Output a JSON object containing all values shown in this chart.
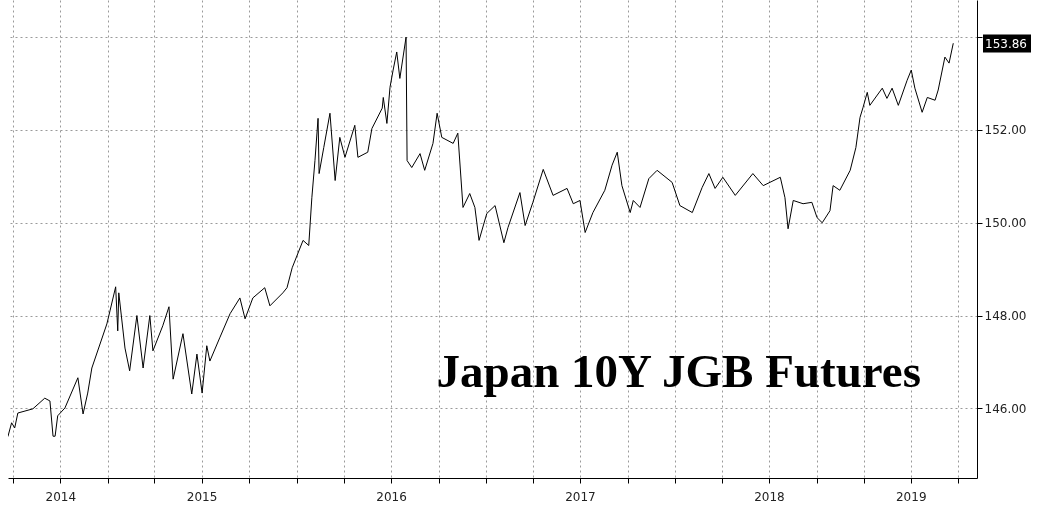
{
  "chart_data": {
    "type": "line",
    "title": "Japan 10Y JGB Futures",
    "x": [
      "2014-06-22",
      "2014-06-29",
      "2014-07-05",
      "2014-07-11",
      "2014-08-09",
      "2014-09-01",
      "2014-09-11",
      "2014-09-17",
      "2014-09-21",
      "2014-09-26",
      "2014-10-10",
      "2014-11-04",
      "2014-11-14",
      "2014-11-23",
      "2014-12-01",
      "2014-12-30",
      "2015-01-05",
      "2015-01-16",
      "2015-01-20",
      "2015-01-22",
      "2015-02-03",
      "2015-02-12",
      "2015-02-26",
      "2015-03-10",
      "2015-03-23",
      "2015-03-29",
      "2015-04-17",
      "2015-04-29",
      "2015-05-07",
      "2015-05-26",
      "2015-06-12",
      "2015-06-22",
      "2015-07-02",
      "2015-07-11",
      "2015-07-17",
      "2015-08-05",
      "2015-08-25",
      "2015-09-13",
      "2015-09-23",
      "2015-10-08",
      "2015-10-31",
      "2015-11-10",
      "2015-12-05",
      "2015-12-13",
      "2015-12-23",
      "2016-01-13",
      "2016-01-24",
      "2016-01-30",
      "2016-02-05",
      "2016-02-11",
      "2016-02-13",
      "2016-02-22",
      "2016-03-05",
      "2016-03-15",
      "2016-03-24",
      "2016-04-03",
      "2016-04-22",
      "2016-04-28",
      "2016-05-17",
      "2016-05-25",
      "2016-06-14",
      "2016-06-16",
      "2016-06-23",
      "2016-06-29",
      "2016-07-05",
      "2016-07-12",
      "2016-07-18",
      "2016-07-30",
      "2016-08-01",
      "2016-08-10",
      "2016-08-26",
      "2016-09-04",
      "2016-09-20",
      "2016-09-28",
      "2016-10-07",
      "2016-10-29",
      "2016-11-07",
      "2016-11-17",
      "2016-11-30",
      "2016-12-10",
      "2016-12-18",
      "2017-01-02",
      "2017-01-18",
      "2017-02-04",
      "2017-02-12",
      "2017-03-07",
      "2017-03-17",
      "2017-04-01",
      "2017-04-21",
      "2017-05-10",
      "2017-06-06",
      "2017-06-18",
      "2017-07-01",
      "2017-07-11",
      "2017-07-26",
      "2017-08-18",
      "2017-09-01",
      "2017-09-11",
      "2017-09-20",
      "2017-10-06",
      "2017-10-12",
      "2017-10-25",
      "2017-11-11",
      "2017-11-27",
      "2017-12-26",
      "2018-01-10",
      "2018-02-03",
      "2018-02-22",
      "2018-03-07",
      "2018-03-19",
      "2018-04-03",
      "2018-04-27",
      "2018-05-31",
      "2018-06-20",
      "2018-07-23",
      "2018-08-01",
      "2018-08-07",
      "2018-08-17",
      "2018-09-05",
      "2018-09-22",
      "2018-10-02",
      "2018-10-12",
      "2018-10-27",
      "2018-11-02",
      "2018-11-15",
      "2018-12-05",
      "2018-12-16",
      "2018-12-24",
      "2018-12-30",
      "2019-01-07",
      "2019-01-12",
      "2019-02-05",
      "2019-02-14",
      "2019-02-24",
      "2019-03-08",
      "2019-03-25",
      "2019-04-02",
      "2019-04-09",
      "2019-04-23",
      "2019-05-03",
      "2019-05-18",
      "2019-05-24",
      "2019-06-06",
      "2019-06-14",
      "2019-06-22"
    ],
    "series": [
      {
        "color": "#000000",
        "values": [
          145.4,
          145.69,
          145.58,
          145.9,
          145.99,
          146.22,
          146.16,
          145.4,
          145.4,
          145.84,
          146.01,
          146.66,
          145.88,
          146.33,
          146.87,
          147.82,
          148.1,
          148.62,
          147.67,
          148.49,
          147.3,
          146.81,
          148.0,
          146.87,
          148.0,
          147.24,
          147.78,
          148.19,
          146.63,
          147.61,
          146.31,
          147.17,
          146.33,
          147.35,
          147.02,
          147.52,
          148.04,
          148.38,
          147.93,
          148.38,
          148.6,
          148.21,
          148.49,
          148.6,
          149.03,
          149.62,
          149.51,
          150.54,
          151.34,
          152.25,
          151.06,
          151.62,
          152.36,
          150.91,
          151.84,
          151.41,
          152.1,
          151.41,
          151.52,
          152.03,
          152.47,
          152.7,
          152.14,
          152.92,
          153.29,
          153.68,
          153.11,
          154.0,
          151.34,
          151.19,
          151.49,
          151.13,
          151.71,
          152.36,
          151.84,
          151.71,
          151.93,
          150.33,
          150.63,
          150.33,
          149.62,
          150.2,
          150.37,
          149.57,
          149.9,
          150.65,
          149.94,
          150.44,
          151.15,
          150.59,
          150.74,
          150.41,
          150.48,
          149.79,
          150.22,
          150.7,
          151.24,
          151.52,
          150.8,
          150.22,
          150.48,
          150.33,
          150.95,
          151.13,
          150.87,
          150.37,
          150.22,
          150.76,
          151.06,
          150.74,
          150.98,
          150.59,
          151.06,
          150.8,
          150.98,
          150.54,
          149.87,
          150.48,
          150.41,
          150.44,
          150.11,
          150.0,
          150.26,
          150.8,
          150.7,
          151.13,
          151.62,
          152.27,
          152.49,
          152.81,
          152.53,
          152.9,
          152.68,
          152.9,
          152.53,
          153.07,
          153.29,
          152.9,
          152.38,
          152.7,
          152.64,
          152.86,
          153.57,
          153.44,
          153.86
        ]
      }
    ],
    "xlim": [
      "2014-06-22",
      "2019-08-07"
    ],
    "xticks": [
      {
        "value": "2014-07-01",
        "label": null
      },
      {
        "value": "2014-10-01",
        "label": "2014"
      },
      {
        "value": "2015-01-01",
        "label": null
      },
      {
        "value": "2015-04-01",
        "label": null
      },
      {
        "value": "2015-07-01",
        "label": "2015"
      },
      {
        "value": "2015-10-01",
        "label": null
      },
      {
        "value": "2016-01-01",
        "label": null
      },
      {
        "value": "2016-04-01",
        "label": null
      },
      {
        "value": "2016-07-01",
        "label": "2016"
      },
      {
        "value": "2016-10-01",
        "label": null
      },
      {
        "value": "2017-01-01",
        "label": null
      },
      {
        "value": "2017-04-01",
        "label": null
      },
      {
        "value": "2017-07-01",
        "label": "2017"
      },
      {
        "value": "2017-10-01",
        "label": null
      },
      {
        "value": "2018-01-01",
        "label": null
      },
      {
        "value": "2018-04-01",
        "label": null
      },
      {
        "value": "2018-07-01",
        "label": "2018"
      },
      {
        "value": "2018-10-01",
        "label": null
      },
      {
        "value": "2019-01-01",
        "label": null
      },
      {
        "value": "2019-04-01",
        "label": "2019"
      },
      {
        "value": "2019-07-01",
        "label": null
      }
    ],
    "ylim": [
      144.5,
      154.8
    ],
    "yticks": [
      {
        "value": 146,
        "label": "146.00"
      },
      {
        "value": 148,
        "label": "148.00"
      },
      {
        "value": 150,
        "label": "150.00"
      },
      {
        "value": 152,
        "label": "152.00"
      },
      {
        "value": 154,
        "label": null
      }
    ],
    "annotations": [
      "153.86"
    ],
    "grid": true
  }
}
